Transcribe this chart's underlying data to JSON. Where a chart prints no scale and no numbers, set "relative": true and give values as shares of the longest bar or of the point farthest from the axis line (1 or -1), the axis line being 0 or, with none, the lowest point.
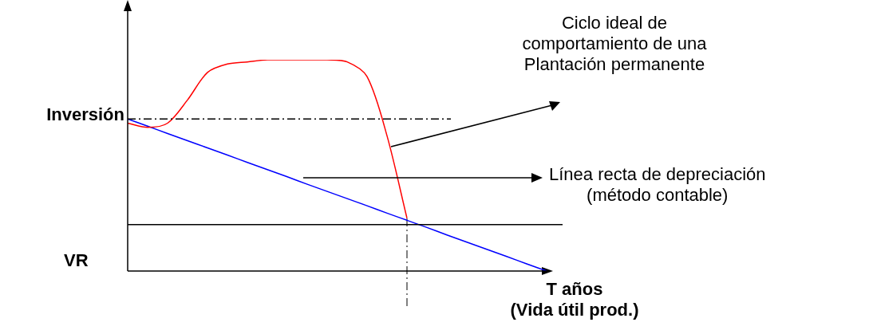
{
  "chart_data": {
    "type": "line",
    "relative": true,
    "categories": [
      null,
      null,
      null,
      null,
      null,
      null,
      null,
      null,
      null,
      null,
      null,
      null,
      null,
      null,
      null,
      null,
      null,
      null,
      null,
      null,
      null,
      null
    ],
    "series": [
      {
        "color": "#ff0000",
        "values": [
          0.7,
          0.68,
          0.7,
          0.81,
          0.94,
          0.98,
          0.99,
          1,
          1,
          1,
          1,
          0.99,
          0.92,
          0.64,
          0.25,
          null,
          null,
          null,
          null,
          null,
          null,
          null
        ]
      },
      {
        "color": "#0000ff",
        "values": [
          0.72,
          0.686,
          0.651,
          0.617,
          0.583,
          0.549,
          0.514,
          0.48,
          0.446,
          0.411,
          0.377,
          0.343,
          0.309,
          0.274,
          0.24,
          0.206,
          0.171,
          0.137,
          0.103,
          0.069,
          0.034,
          0
        ]
      }
    ],
    "ref_lines": [
      {
        "axis": "y",
        "value": 0.72,
        "label": "Inversión",
        "color": "#000000",
        "line_style": "dashdot"
      },
      {
        "axis": "y",
        "value": 0.22,
        "label": null,
        "color": "#000000",
        "line_style": "solid"
      }
    ],
    "xlabel": "T años\n(Vida útil prod.)",
    "annotations": [
      "Ciclo ideal de\ncomportamiento de una\nPlantación permanente",
      "Línea recta de depreciación\n(método contable)",
      "VR"
    ],
    "legend": false
  }
}
